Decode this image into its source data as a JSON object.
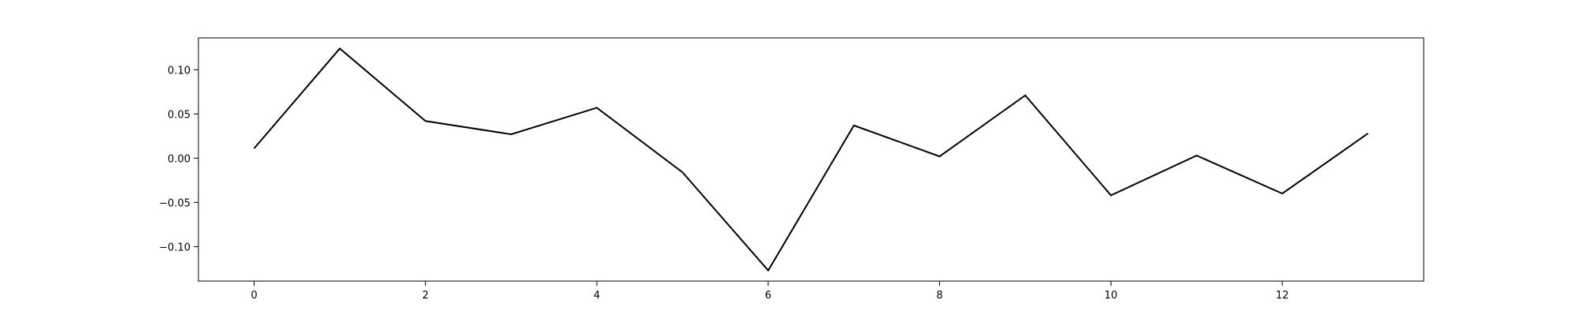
{
  "chart_data": {
    "type": "line",
    "title": "",
    "xlabel": "",
    "ylabel": "",
    "x": [
      0,
      1,
      2,
      3,
      4,
      5,
      6,
      7,
      8,
      9,
      10,
      11,
      12,
      13
    ],
    "series": [
      {
        "values": [
          0.011,
          0.124,
          0.042,
          0.027,
          0.057,
          -0.016,
          -0.127,
          0.037,
          0.002,
          0.071,
          -0.042,
          0.003,
          -0.04,
          0.028
        ],
        "color": "#000000"
      }
    ],
    "xlim": [
      -0.65,
      13.65
    ],
    "ylim": [
      -0.139,
      0.136
    ],
    "xticks": [
      0,
      2,
      4,
      6,
      8,
      10,
      12
    ],
    "xtick_labels": [
      "0",
      "2",
      "4",
      "6",
      "8",
      "10",
      "12"
    ],
    "yticks": [
      -0.1,
      -0.05,
      0.0,
      0.05,
      0.1
    ],
    "ytick_labels": [
      "−0.10",
      "−0.05",
      "0.00",
      "0.05",
      "0.10"
    ],
    "grid": false,
    "legend": "none"
  }
}
